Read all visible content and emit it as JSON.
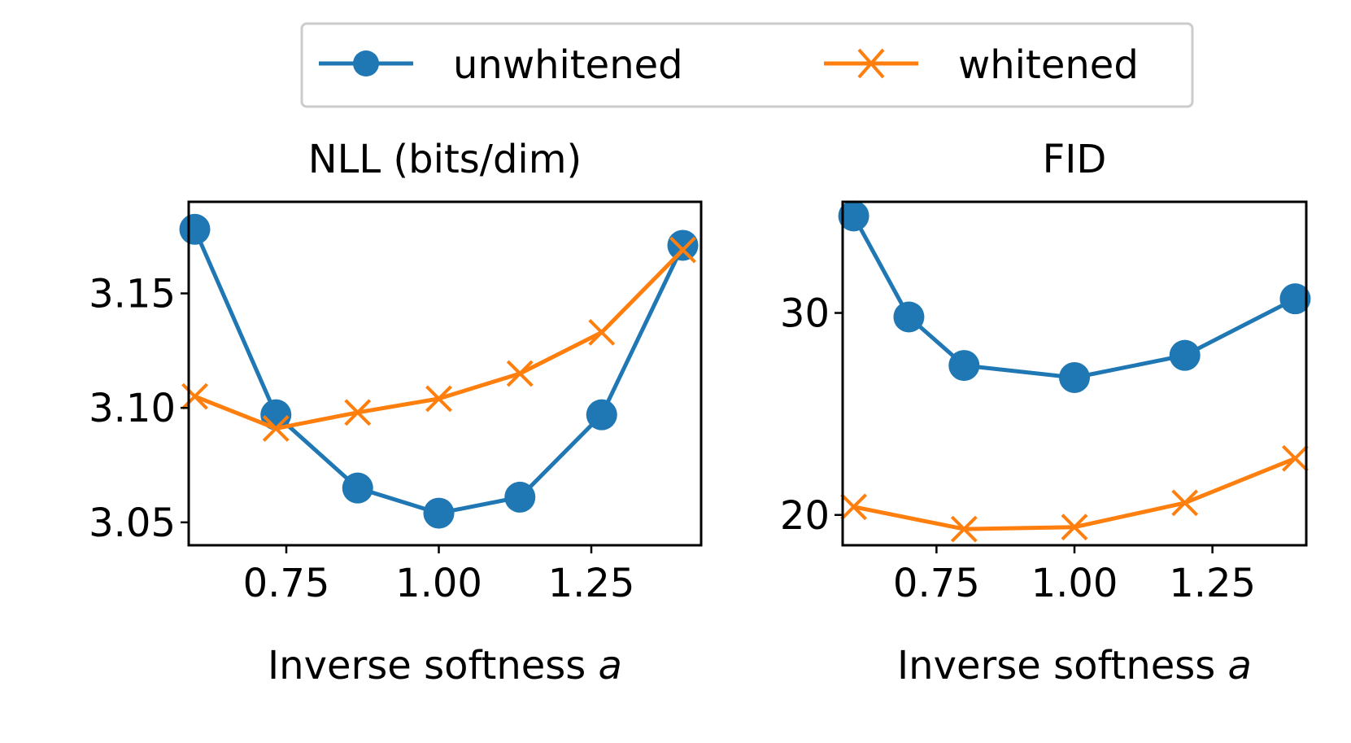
{
  "legend": {
    "placement": "top-center",
    "entries": [
      {
        "label": "unwhitened",
        "color": "#1f77b4",
        "marker": "circle"
      },
      {
        "label": "whitened",
        "color": "#ff7f0e",
        "marker": "x"
      }
    ]
  },
  "chart_data": [
    {
      "type": "line",
      "title": "NLL (bits/dim)",
      "xlabel": "Inverse softness",
      "xlabel_var": "a",
      "xlim": [
        0.59,
        1.43
      ],
      "ylim": [
        3.04,
        3.19
      ],
      "xticks": [
        0.75,
        1.0,
        1.25
      ],
      "xtick_labels": [
        "0.75",
        "1.00",
        "1.25"
      ],
      "yticks": [
        3.05,
        3.1,
        3.15
      ],
      "ytick_labels": [
        "3.05",
        "3.10",
        "3.15"
      ],
      "series": [
        {
          "name": "unwhitened",
          "color": "#1f77b4",
          "marker": "circle",
          "x": [
            0.6,
            0.733,
            0.867,
            1.0,
            1.133,
            1.267,
            1.4
          ],
          "y": [
            3.178,
            3.097,
            3.065,
            3.054,
            3.061,
            3.097,
            3.171
          ]
        },
        {
          "name": "whitened",
          "color": "#ff7f0e",
          "marker": "x",
          "x": [
            0.6,
            0.733,
            0.867,
            1.0,
            1.133,
            1.267,
            1.4
          ],
          "y": [
            3.105,
            3.091,
            3.098,
            3.104,
            3.115,
            3.133,
            3.169
          ]
        }
      ]
    },
    {
      "type": "line",
      "title": "FID",
      "xlabel": "Inverse softness",
      "xlabel_var": "a",
      "xlim": [
        0.58,
        1.42
      ],
      "ylim": [
        18.5,
        35.5
      ],
      "xticks": [
        0.75,
        1.0,
        1.25
      ],
      "xtick_labels": [
        "0.75",
        "1.00",
        "1.25"
      ],
      "yticks": [
        20,
        30
      ],
      "ytick_labels": [
        "20",
        "30"
      ],
      "series": [
        {
          "name": "unwhitened",
          "color": "#1f77b4",
          "marker": "circle",
          "x": [
            0.6,
            0.7,
            0.8,
            1.0,
            1.2,
            1.4
          ],
          "y": [
            34.8,
            29.8,
            27.4,
            26.8,
            27.9,
            30.7
          ]
        },
        {
          "name": "whitened",
          "color": "#ff7f0e",
          "marker": "x",
          "x": [
            0.6,
            0.8,
            1.0,
            1.2,
            1.4
          ],
          "y": [
            20.4,
            19.3,
            19.4,
            20.6,
            22.8
          ]
        }
      ]
    }
  ]
}
